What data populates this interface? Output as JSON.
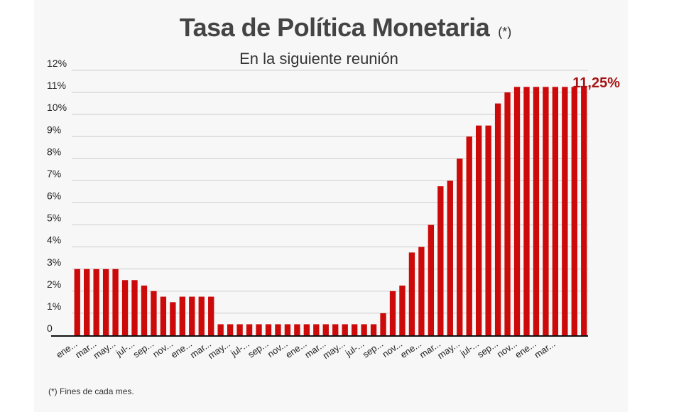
{
  "header": {
    "title": "Tasa de Política Monetaria",
    "title_note": "(*)",
    "subtitle": "En la siguiente reunión"
  },
  "footnote": "(*) Fines de cada mes.",
  "highlight_label": "11,25%",
  "colors": {
    "bar": "#cc0a0a",
    "highlight": "#a51212",
    "grid": "#cfcfcf",
    "axis": "#111111",
    "panel": "#f7f7f7"
  },
  "chart_data": {
    "type": "bar",
    "ylim": [
      0,
      12
    ],
    "y_ticks": [
      "0",
      "1%",
      "2%",
      "3%",
      "4%",
      "5%",
      "6%",
      "7%",
      "8%",
      "9%",
      "10%",
      "11%",
      "12%"
    ],
    "x_tick_labels": [
      "ene...",
      "mar...",
      "may...",
      "jul-...",
      "sep...",
      "nov...",
      "ene...",
      "mar...",
      "may...",
      "jul-...",
      "sep...",
      "nov...",
      "ene...",
      "mar...",
      "may...",
      "jul-...",
      "sep...",
      "nov...",
      "ene...",
      "mar...",
      "may...",
      "jul-...",
      "sep...",
      "nov...",
      "ene...",
      "mar..."
    ],
    "values": [
      3,
      3,
      3,
      3,
      3,
      2.5,
      2.5,
      2.25,
      2,
      1.75,
      1.5,
      1.75,
      1.75,
      1.75,
      1.75,
      0.5,
      0.5,
      0.5,
      0.5,
      0.5,
      0.5,
      0.5,
      0.5,
      0.5,
      0.5,
      0.5,
      0.5,
      0.5,
      0.5,
      0.5,
      0.5,
      0.5,
      1,
      2,
      2.25,
      3.75,
      4,
      5,
      6.75,
      7,
      8,
      9,
      9.5,
      9.5,
      10.5,
      11,
      11.25,
      11.25,
      11.25,
      11.25,
      11.25,
      11.25,
      11.25,
      11.25
    ],
    "xlabel": "",
    "ylabel": ""
  }
}
